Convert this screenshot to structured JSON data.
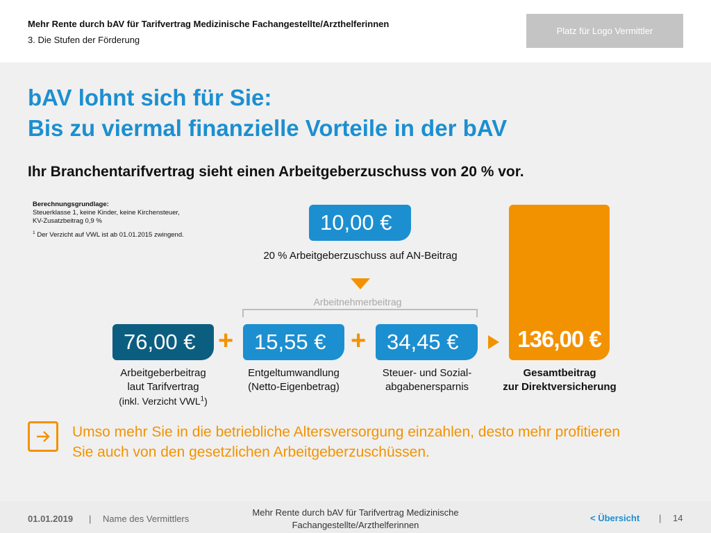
{
  "header": {
    "title": "Mehr Rente durch bAV für Tarifvertrag Medizinische Fachangestellte/Arzthelferinnen",
    "subtitle": "3. Die Stufen der Förderung",
    "logo_placeholder": "Platz für Logo Vermittler"
  },
  "main": {
    "title_line1": "bAV lohnt sich für Sie:",
    "title_line2": "Bis zu viermal finanzielle Vorteile in der bAV",
    "subtitle": "Ihr Branchentarifvertrag sieht einen Arbeitgeberzuschuss von 20 % vor.",
    "calc_basis": {
      "heading": "Berechnungsgrundlage:",
      "line1": "Steuerklasse 1, keine Kinder, keine Kirchensteuer,",
      "line2": "KV-Zusatzbeitrag 0,9 %",
      "footnote_mark": "1",
      "footnote": "Der Verzicht auf VWL ist ab 01.01.2015 zwingend."
    },
    "employer_contribution": {
      "amount": "10,00 €",
      "label": "20 % Arbeitgeberzuschuss auf AN-Beitrag"
    },
    "bracket_label": "Arbeitnehmerbeitrag",
    "items": [
      {
        "amount": "76,00 €",
        "caption_line1": "Arbeitgeberbeitrag",
        "caption_line2": "laut Tarifvertrag",
        "caption_line3": "(inkl. Verzicht VWL",
        "caption_sup": "1",
        "caption_end": ")"
      },
      {
        "amount": "15,55 €",
        "caption_line1": "Entgeltumwandlung",
        "caption_line2": "(Netto-Eigenbetrag)"
      },
      {
        "amount": "34,45 €",
        "caption_line1": "Steuer- und Sozial-",
        "caption_line2": "abgabenersparnis"
      }
    ],
    "operator_plus": "+",
    "total": {
      "amount": "136,00 €",
      "caption_line1": "Gesamtbeitrag",
      "caption_line2": "zur Direktversicherung"
    },
    "hint_text": "Umso mehr Sie in die betriebliche Altersversorgung einzahlen, desto mehr profitieren Sie auch von den gesetzlichen Arbeitgeberzuschüssen."
  },
  "footer": {
    "date": "01.01.2019",
    "separator": "|",
    "agent_name": "Name des Vermittlers",
    "center_line1": "Mehr Rente durch bAV für Tarifvertrag Medizinische",
    "center_line2": "Fachangestellte/Arzthelferinnen",
    "overview_link": "< Übersicht",
    "page_number": "14"
  },
  "colors": {
    "accent_blue": "#1c8fd0",
    "dark_blue": "#0c5e80",
    "accent_orange": "#f39200",
    "background_gray": "#f0f0f0"
  },
  "icons": {
    "down_arrow": "triangle-down-icon",
    "right_arrow": "triangle-right-icon",
    "hint": "arrow-right-box-icon"
  }
}
